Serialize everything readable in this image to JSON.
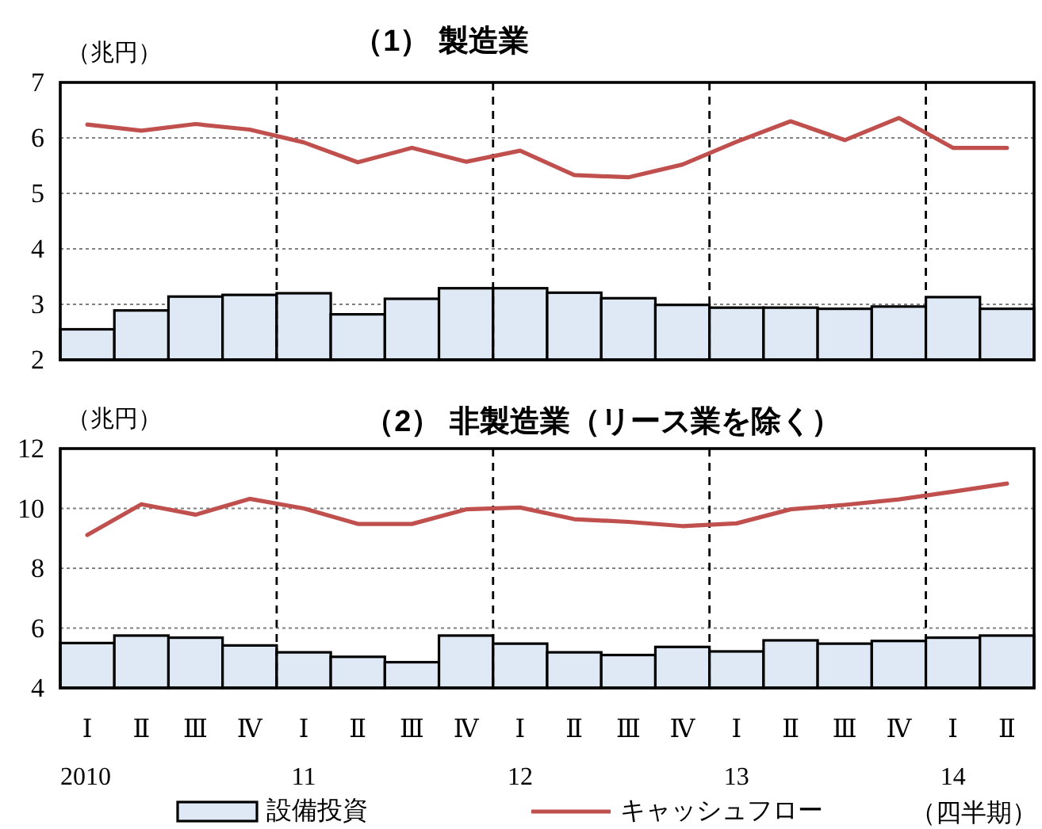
{
  "chart_data": [
    {
      "type": "bar",
      "title": "（1） 製造業",
      "ylabel": "（兆円）",
      "categories": [
        null,
        null,
        null,
        null,
        null,
        null,
        null,
        null,
        null,
        null,
        null,
        null,
        null,
        null,
        null,
        null,
        null,
        null
      ],
      "ylim": [
        2,
        7
      ],
      "yticks": [
        2,
        3,
        4,
        5,
        6,
        7
      ],
      "grid": "y",
      "tick_labels": "y",
      "series": [
        {
          "color": "#dfe9f6",
          "values": [
            2.55,
            2.89,
            3.14,
            3.17,
            3.2,
            2.82,
            3.1,
            3.29,
            3.29,
            3.21,
            3.11,
            2.99,
            2.94,
            2.94,
            2.92,
            2.96,
            3.13,
            2.92
          ]
        },
        {
          "type": "line",
          "color": "#c0504d",
          "values": [
            6.24,
            6.13,
            6.25,
            6.15,
            5.92,
            5.56,
            5.82,
            5.57,
            5.77,
            5.33,
            5.29,
            5.52,
            5.93,
            6.3,
            5.96,
            6.36,
            5.82,
            5.82
          ]
        }
      ]
    },
    {
      "type": "bar",
      "title": "（2） 非製造業（リース業を除く）",
      "ylabel": "（兆円）",
      "categories": [
        "Ⅰ",
        "Ⅱ",
        "Ⅲ",
        "Ⅳ",
        "Ⅰ",
        "Ⅱ",
        "Ⅲ",
        "Ⅳ",
        "Ⅰ",
        "Ⅱ",
        "Ⅲ",
        "Ⅳ",
        "Ⅰ",
        "Ⅱ",
        "Ⅲ",
        "Ⅳ",
        "Ⅰ",
        "Ⅱ"
      ],
      "ylim": [
        4,
        12
      ],
      "yticks": [
        4,
        6,
        8,
        10,
        12
      ],
      "grid": "y",
      "legend": "bottom",
      "annotations": [
        "2010",
        "11",
        "12",
        "13",
        "14",
        "（四半期）"
      ],
      "series": [
        {
          "name": "設備投資",
          "color": "#dfe9f6",
          "values": [
            5.5,
            5.75,
            5.68,
            5.42,
            5.19,
            5.04,
            4.86,
            5.75,
            5.48,
            5.19,
            5.1,
            5.37,
            5.22,
            5.59,
            5.48,
            5.57,
            5.68,
            5.75
          ]
        },
        {
          "type": "line",
          "name": "キャッシュフロー",
          "color": "#c0504d",
          "values": [
            9.11,
            10.14,
            9.79,
            10.32,
            10.0,
            9.48,
            9.48,
            9.97,
            10.03,
            9.64,
            9.55,
            9.41,
            9.5,
            9.97,
            10.12,
            10.3,
            10.56,
            10.83
          ]
        }
      ]
    }
  ]
}
